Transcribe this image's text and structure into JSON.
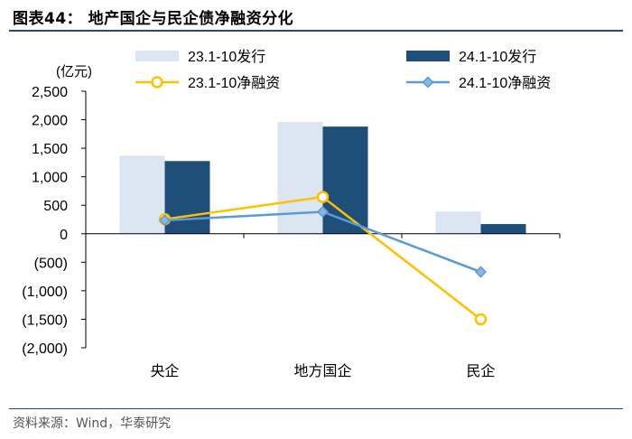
{
  "figure": {
    "title": "图表44： 地产国企与民企债净融资分化",
    "source": "资料来源：Wind，华泰研究"
  },
  "chart_data": {
    "type": "bar",
    "ylabel": "(亿元)",
    "ylim": [
      -2000,
      2500
    ],
    "yticks": [
      2500,
      2000,
      1500,
      1000,
      500,
      0,
      -500,
      -1000,
      -1500,
      -2000
    ],
    "ytick_labels": [
      "2,500",
      "2,000",
      "1,500",
      "1,000",
      "500",
      "0",
      "(500)",
      "(1,000)",
      "(1,500)",
      "(2,000)"
    ],
    "categories": [
      "央企",
      "地方国企",
      "民企"
    ],
    "legend_position": "top",
    "series": [
      {
        "name": "23.1-10发行",
        "kind": "bar",
        "color": "#dce6f2",
        "values": [
          1370,
          1960,
          390
        ]
      },
      {
        "name": "24.1-10发行",
        "kind": "bar",
        "color": "#1f4e79",
        "values": [
          1275,
          1880,
          170
        ]
      },
      {
        "name": "23.1-10净融资",
        "kind": "line",
        "marker": "circle",
        "color": "#ffc000",
        "values": [
          255,
          645,
          -1500
        ]
      },
      {
        "name": "24.1-10净融资",
        "kind": "line",
        "marker": "diamond",
        "color": "#5b9bd5",
        "values": [
          235,
          385,
          -670
        ]
      }
    ]
  }
}
